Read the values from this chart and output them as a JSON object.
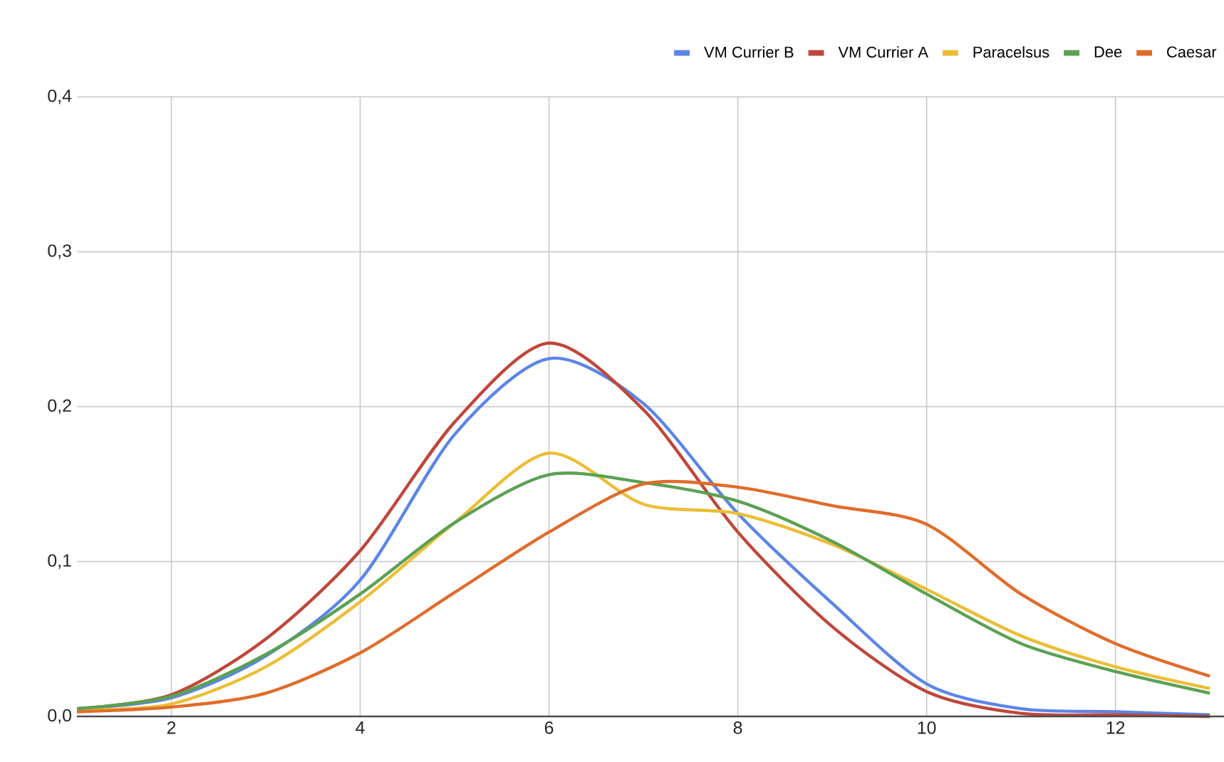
{
  "chart_data": {
    "type": "line",
    "x": [
      1,
      2,
      3,
      4,
      5,
      6,
      7,
      8,
      9,
      10,
      11,
      12,
      13
    ],
    "series": [
      {
        "name": "VM Currier B",
        "color": "#5b85e8",
        "values": [
          0.005,
          0.012,
          0.039,
          0.088,
          0.182,
          0.231,
          0.202,
          0.131,
          0.073,
          0.021,
          0.005,
          0.003,
          0.001
        ]
      },
      {
        "name": "VM Currier A",
        "color": "#c0463a",
        "values": [
          0.005,
          0.014,
          0.05,
          0.107,
          0.19,
          0.241,
          0.198,
          0.119,
          0.058,
          0.016,
          0.002,
          0.001,
          0.0
        ]
      },
      {
        "name": "Paracelsus",
        "color": "#ecbd36",
        "values": [
          0.004,
          0.008,
          0.032,
          0.074,
          0.125,
          0.17,
          0.137,
          0.131,
          0.111,
          0.082,
          0.052,
          0.032,
          0.018
        ]
      },
      {
        "name": "Dee",
        "color": "#5ba152",
        "values": [
          0.005,
          0.013,
          0.04,
          0.079,
          0.125,
          0.156,
          0.151,
          0.139,
          0.113,
          0.079,
          0.047,
          0.029,
          0.015
        ]
      },
      {
        "name": "Caesar",
        "color": "#e06c2a",
        "values": [
          0.003,
          0.006,
          0.015,
          0.041,
          0.08,
          0.119,
          0.15,
          0.148,
          0.136,
          0.124,
          0.079,
          0.047,
          0.026
        ]
      }
    ],
    "xlim": [
      1,
      13.15
    ],
    "ylim": [
      0,
      0.4
    ],
    "xticks": [
      2,
      4,
      6,
      8,
      10,
      12
    ],
    "yticks": [
      {
        "value": 0,
        "label": "0,0"
      },
      {
        "value": 0.1,
        "label": "0,1"
      },
      {
        "value": 0.2,
        "label": "0,2"
      },
      {
        "value": 0.3,
        "label": "0,3"
      },
      {
        "value": 0.4,
        "label": "0,4"
      }
    ],
    "grid": true,
    "legend": "top"
  }
}
